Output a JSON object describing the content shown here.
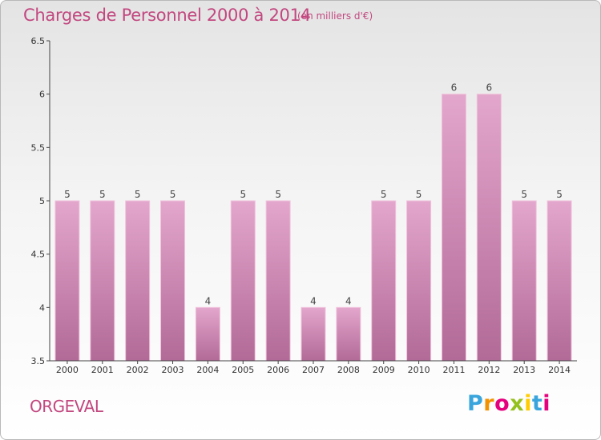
{
  "header": {
    "title": "Charges de Personnel 2000 à 2014",
    "subtitle": "(en milliers d'€)"
  },
  "footer": {
    "commune": "ORGEVAL",
    "logo": {
      "letters": [
        "P",
        "r",
        "o",
        "x",
        "i",
        "t",
        "i"
      ],
      "colors": [
        "#3aa5dc",
        "#f39200",
        "#e5007e",
        "#95c11f",
        "#ffcc00",
        "#3aa5dc",
        "#e5007e"
      ]
    }
  },
  "chart_data": {
    "type": "bar",
    "categories": [
      "2000",
      "2001",
      "2002",
      "2003",
      "2004",
      "2005",
      "2006",
      "2007",
      "2008",
      "2009",
      "2010",
      "2011",
      "2012",
      "2013",
      "2014"
    ],
    "values": [
      5,
      5,
      5,
      5,
      4,
      5,
      5,
      4,
      4,
      5,
      5,
      6,
      6,
      5,
      5
    ],
    "data_labels": [
      "5",
      "5",
      "5",
      "5",
      "4",
      "5",
      "5",
      "4",
      "4",
      "5",
      "5",
      "6",
      "6",
      "5",
      "5"
    ],
    "yticks": [
      "3.5",
      "4",
      "4.5",
      "5",
      "5.5",
      "6",
      "6.5"
    ],
    "ylim": [
      3.5,
      6.5
    ],
    "title": "Charges de Personnel 2000 à 2014",
    "xlabel": "",
    "ylabel": "",
    "grid": false,
    "bar_color": "#d98ab6"
  }
}
